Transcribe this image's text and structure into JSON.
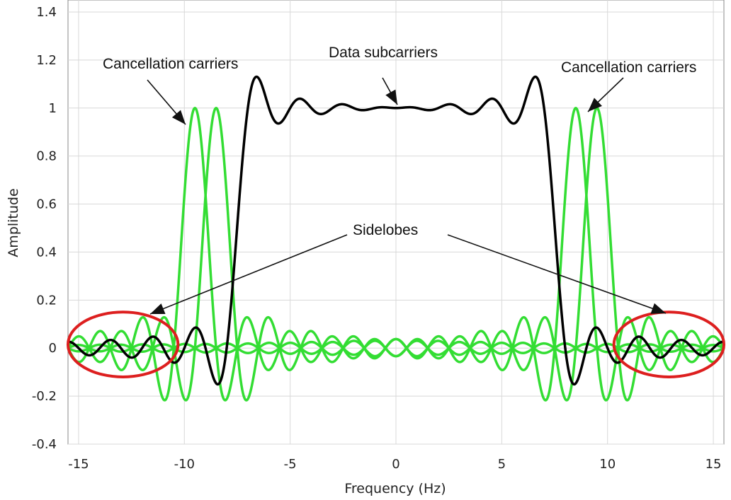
{
  "chart_data": {
    "type": "line",
    "title": "",
    "xlabel": "Frequency (Hz)",
    "ylabel": "Amplitude",
    "xlim": [
      -15.5,
      15.5
    ],
    "ylim": [
      -0.4,
      1.45
    ],
    "grid": true,
    "xticks": [
      -15,
      -10,
      -5,
      0,
      5,
      10,
      15
    ],
    "xtick_labels": [
      "-15",
      "-10",
      "-5",
      "0",
      "5",
      "10",
      "15"
    ],
    "yticks": [
      -0.4,
      -0.2,
      0,
      0.2,
      0.4,
      0.6,
      0.8,
      1,
      1.2,
      1.4
    ],
    "ytick_labels": [
      "-0.4",
      "-0.2",
      "0",
      "0.2",
      "0.4",
      "0.6",
      "0.8",
      "1",
      "1.2",
      "1.4"
    ],
    "series": [
      {
        "name": "Data subcarriers",
        "color": "#000000",
        "function": "sum of sinc(f - k)",
        "subcarrier_centers": [
          -7,
          -6,
          -5,
          -4,
          -3,
          -2,
          -1,
          0,
          1,
          2,
          3,
          4,
          5,
          6,
          7
        ]
      },
      {
        "name": "Cancellation carriers",
        "color": "#33dd33",
        "function": "sinc(f - k)",
        "subcarrier_centers": [
          -9.5,
          -8.5,
          8.5,
          9.5
        ]
      }
    ],
    "annotations": [
      {
        "text": "Cancellation carriers",
        "position": "upper-left"
      },
      {
        "text": "Data subcarriers",
        "position": "upper-center"
      },
      {
        "text": "Cancellation carriers",
        "position": "upper-right"
      },
      {
        "text": "Sidelobes",
        "position": "center"
      }
    ],
    "highlight_regions": [
      {
        "name": "left-sidelobes",
        "x_range": [
          -15.5,
          -10.3
        ],
        "y_range": [
          -0.12,
          0.15
        ],
        "color": "#dd1f1f"
      },
      {
        "name": "right-sidelobes",
        "x_range": [
          10.3,
          15.5
        ],
        "y_range": [
          -0.12,
          0.15
        ],
        "color": "#dd1f1f"
      }
    ]
  }
}
